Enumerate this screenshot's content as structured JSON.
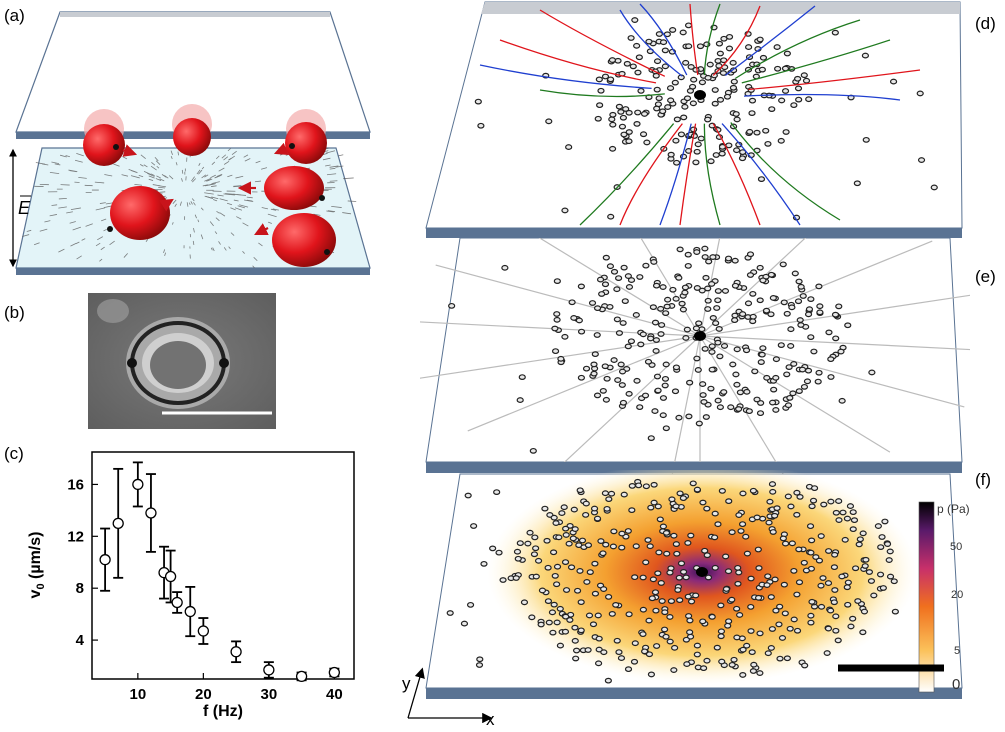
{
  "panels": {
    "a": {
      "label": "(a)",
      "field_label": "E"
    },
    "b": {
      "label": "(b)"
    },
    "c": {
      "label": "(c)"
    },
    "d": {
      "label": "(d)"
    },
    "e": {
      "label": "(e)"
    },
    "f": {
      "label": "(f)",
      "colorbar": {
        "title": "p (Pa)",
        "ticks": [
          "50",
          "20",
          "5",
          "0"
        ]
      }
    }
  },
  "axes_indicator": {
    "x": "x",
    "y": "y"
  },
  "colors": {
    "plate": "#5a7393",
    "bead_red": "#e0141b",
    "traj_red": "#e0141b",
    "traj_blue": "#1f3fd0",
    "traj_green": "#1f7a1f",
    "substrate": "#e3f4f8"
  },
  "chart_data": {
    "type": "scatter",
    "xlabel": "f (Hz)",
    "ylabel": "v0 (µm/s)",
    "xlim": [
      3,
      43
    ],
    "ylim": [
      1,
      18.5
    ],
    "xticks": [
      10,
      20,
      30,
      40
    ],
    "yticks": [
      4,
      8,
      12,
      16
    ],
    "series": [
      {
        "x": [
          5,
          7,
          10,
          12,
          14,
          15,
          16,
          18,
          20,
          25,
          30,
          35,
          40
        ],
        "y": [
          10.2,
          13.0,
          16.0,
          13.8,
          9.2,
          8.9,
          6.9,
          6.2,
          4.7,
          3.1,
          1.7,
          1.2,
          1.5
        ],
        "err": [
          2.4,
          4.2,
          1.7,
          3.0,
          2.0,
          2.0,
          0.8,
          1.9,
          1.0,
          0.8,
          0.6,
          0.3,
          0.3
        ]
      }
    ]
  }
}
